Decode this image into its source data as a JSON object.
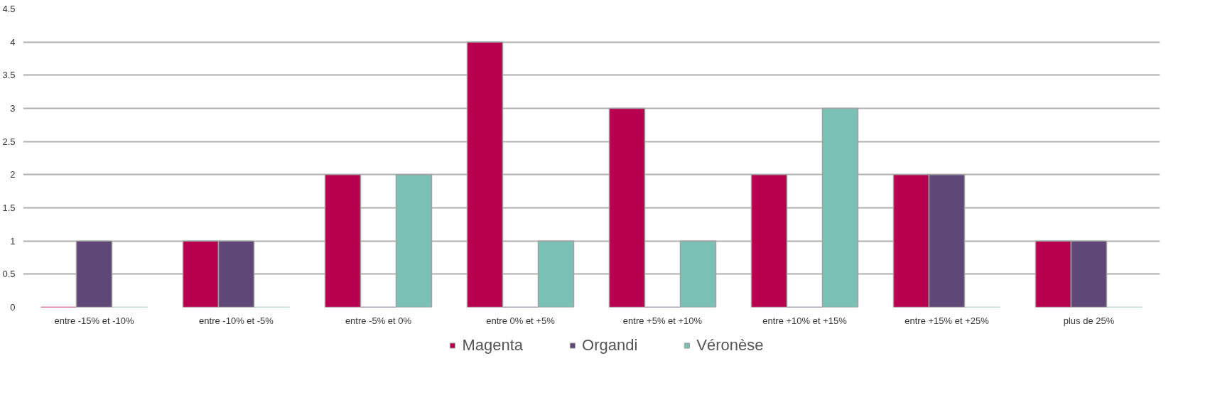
{
  "chart_data": {
    "type": "bar",
    "categories": [
      "entre -15% et -10%",
      "entre -10% et -5%",
      "entre -5% et 0%",
      "entre 0% et +5%",
      "entre +5% et +10%",
      "entre +10% et +15%",
      "entre +15% et +25%",
      "plus de 25%"
    ],
    "series": [
      {
        "name": "Magenta",
        "color": "#b8004e",
        "values": [
          0,
          1,
          2,
          4,
          3,
          2,
          2,
          1
        ]
      },
      {
        "name": "Organdi",
        "color": "#5f4777",
        "values": [
          1,
          1,
          0,
          0,
          0,
          0,
          2,
          1
        ]
      },
      {
        "name": "Véronèse",
        "color": "#7bc0b4",
        "values": [
          0,
          0,
          2,
          1,
          1,
          3,
          0,
          0
        ]
      }
    ],
    "ylim": [
      0,
      4.5
    ],
    "yticks": [
      0,
      0.5,
      1,
      1.5,
      2,
      2.5,
      3,
      3.5,
      4,
      4.5
    ],
    "grid": "y",
    "legend": "bottom"
  }
}
